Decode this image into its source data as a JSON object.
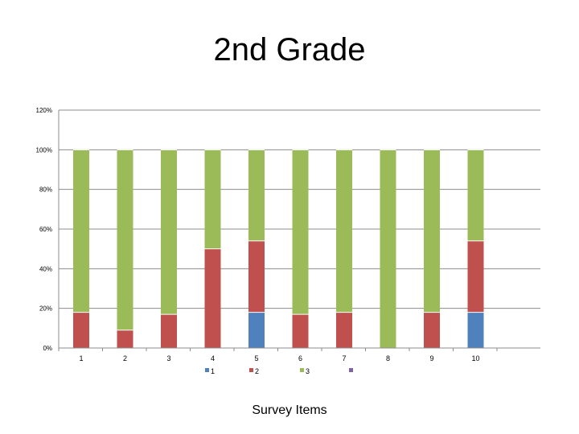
{
  "chart_data": {
    "type": "bar",
    "stacked": true,
    "percent": true,
    "title": "2nd Grade",
    "xlabel": "Survey Items",
    "ylabel": "",
    "ylim": [
      0,
      1.2
    ],
    "yticks": [
      0,
      0.2,
      0.4,
      0.6,
      0.8,
      1.0,
      1.2
    ],
    "ytick_labels": [
      "0%",
      "20%",
      "40%",
      "60%",
      "80%",
      "100%",
      "120%"
    ],
    "grid": true,
    "legend_position": "bottom",
    "categories": [
      "1",
      "2",
      "3",
      "4",
      "5",
      "6",
      "7",
      "8",
      "9",
      "10"
    ],
    "series": [
      {
        "name": "1",
        "color": "#4F81BD",
        "values": [
          0,
          0,
          0,
          0,
          0.18,
          0,
          0,
          0,
          0,
          0.18
        ]
      },
      {
        "name": "2",
        "color": "#C0504D",
        "values": [
          0.18,
          0.09,
          0.17,
          0.5,
          0.36,
          0.17,
          0.18,
          0,
          0.18,
          0.36
        ]
      },
      {
        "name": "3",
        "color": "#9BBB59",
        "values": [
          0.82,
          0.91,
          0.83,
          0.5,
          0.46,
          0.83,
          0.82,
          1.0,
          0.82,
          0.46
        ]
      },
      {
        "name": "",
        "color": "#8064A2",
        "values": [
          0,
          0,
          0,
          0,
          0,
          0,
          0,
          0,
          0,
          0
        ]
      }
    ]
  }
}
